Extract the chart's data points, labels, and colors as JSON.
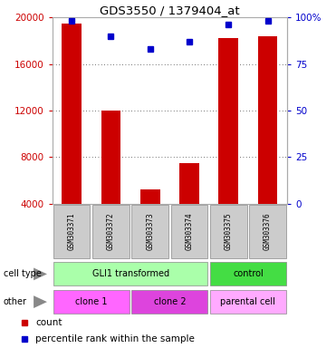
{
  "title": "GDS3550 / 1379404_at",
  "samples": [
    "GSM303371",
    "GSM303372",
    "GSM303373",
    "GSM303374",
    "GSM303375",
    "GSM303376"
  ],
  "counts": [
    19500,
    12000,
    5200,
    7500,
    18200,
    18400
  ],
  "percentiles": [
    98,
    90,
    83,
    87,
    96,
    98
  ],
  "ylim_left": [
    4000,
    20000
  ],
  "ylim_right": [
    0,
    100
  ],
  "yticks_left": [
    4000,
    8000,
    12000,
    16000,
    20000
  ],
  "yticks_right": [
    0,
    25,
    50,
    75,
    100
  ],
  "bar_color": "#cc0000",
  "dot_color": "#0000cc",
  "cell_type_groups": [
    {
      "label": "GLI1 transformed",
      "cols": [
        0,
        1,
        2,
        3
      ],
      "color": "#aaffaa"
    },
    {
      "label": "control",
      "cols": [
        4,
        5
      ],
      "color": "#44dd44"
    }
  ],
  "other_groups": [
    {
      "label": "clone 1",
      "cols": [
        0,
        1
      ],
      "color": "#ff66ff"
    },
    {
      "label": "clone 2",
      "cols": [
        2,
        3
      ],
      "color": "#dd44dd"
    },
    {
      "label": "parental cell",
      "cols": [
        4,
        5
      ],
      "color": "#ffaaff"
    }
  ],
  "left_axis_color": "#cc0000",
  "right_axis_color": "#0000cc",
  "background_color": "#ffffff",
  "sample_box_color": "#cccccc",
  "sample_text_color": "#000000",
  "row_label_color": "#666666",
  "arrow_color": "#888888",
  "legend_count_label": "count",
  "legend_pct_label": "percentile rank within the sample"
}
